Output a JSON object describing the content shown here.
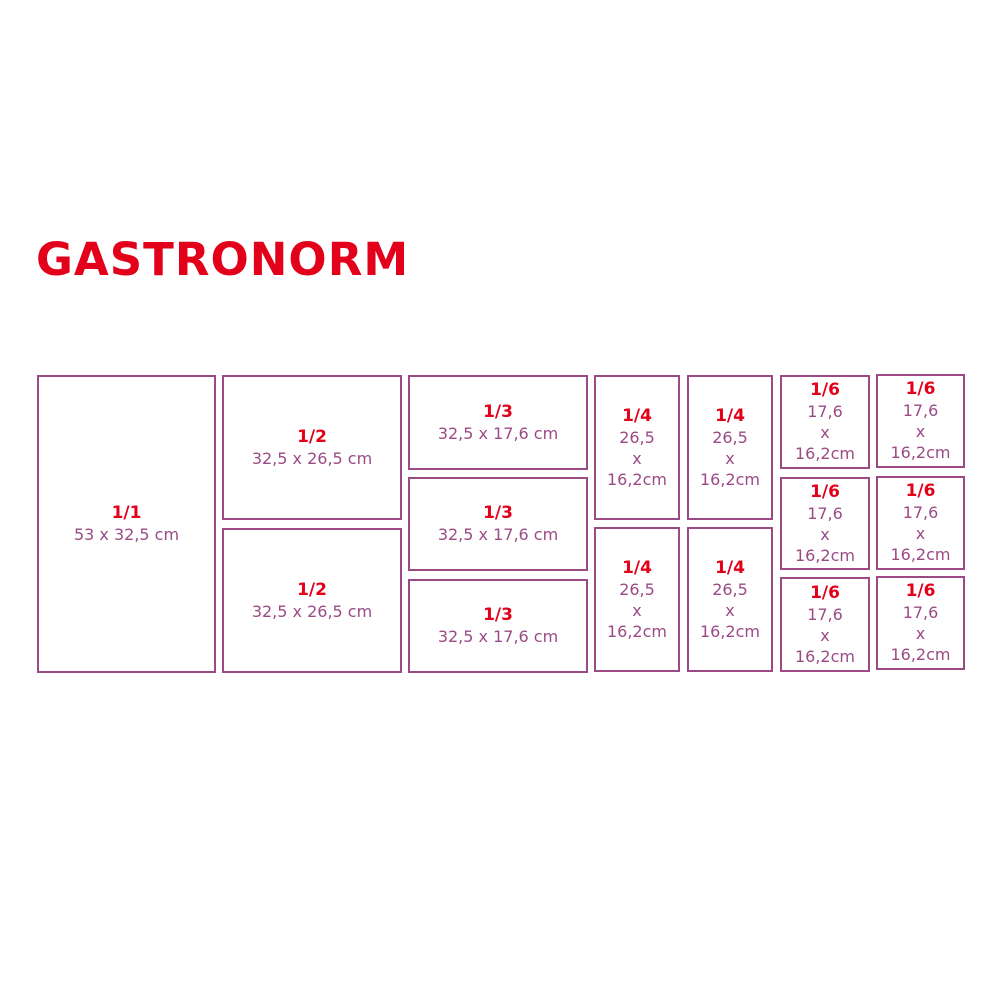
{
  "title": "GASTRONORM",
  "colors": {
    "title": "#e2001a",
    "fraction": "#e2001a",
    "dimension": "#9b4a85",
    "border": "#9b4a85"
  },
  "pans": [
    {
      "fraction": "1/1",
      "lines": [
        "53 x 32,5 cm"
      ]
    },
    {
      "fraction": "1/2",
      "lines": [
        "32,5 x 26,5 cm"
      ]
    },
    {
      "fraction": "1/2",
      "lines": [
        "32,5 x 26,5 cm"
      ]
    },
    {
      "fraction": "1/3",
      "lines": [
        "32,5 x 17,6 cm"
      ]
    },
    {
      "fraction": "1/3",
      "lines": [
        "32,5 x 17,6 cm"
      ]
    },
    {
      "fraction": "1/3",
      "lines": [
        "32,5 x 17,6 cm"
      ]
    },
    {
      "fraction": "1/4",
      "lines": [
        "26,5",
        "x",
        "16,2cm"
      ]
    },
    {
      "fraction": "1/4",
      "lines": [
        "26,5",
        "x",
        "16,2cm"
      ]
    },
    {
      "fraction": "1/4",
      "lines": [
        "26,5",
        "x",
        "16,2cm"
      ]
    },
    {
      "fraction": "1/4",
      "lines": [
        "26,5",
        "x",
        "16,2cm"
      ]
    },
    {
      "fraction": "1/6",
      "lines": [
        "17,6",
        "x",
        "16,2cm"
      ]
    },
    {
      "fraction": "1/6",
      "lines": [
        "17,6",
        "x",
        "16,2cm"
      ]
    },
    {
      "fraction": "1/6",
      "lines": [
        "17,6",
        "x",
        "16,2cm"
      ]
    },
    {
      "fraction": "1/6",
      "lines": [
        "17,6",
        "x",
        "16,2cm"
      ]
    },
    {
      "fraction": "1/6",
      "lines": [
        "17,6",
        "x",
        "16,2cm"
      ]
    },
    {
      "fraction": "1/6",
      "lines": [
        "17,6",
        "x",
        "16,2cm"
      ]
    }
  ]
}
